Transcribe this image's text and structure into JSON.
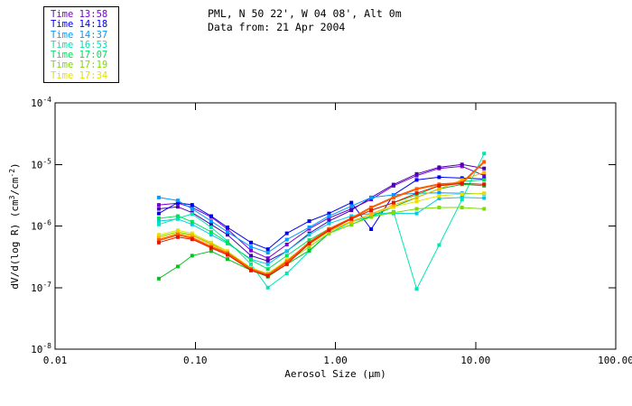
{
  "header": {
    "title_line1": "PML, N 50 22', W 04 08', Alt 0m",
    "title_line2": "Data from: 21 Apr 2004"
  },
  "legend": {
    "items": [
      {
        "label": "Time 13:58",
        "color": "#7A00D2"
      },
      {
        "label": "Time 14:18",
        "color": "#0000F0"
      },
      {
        "label": "Time 14:37",
        "color": "#009CFF"
      },
      {
        "label": "Time 16:53",
        "color": "#00E6B4"
      },
      {
        "label": "Time 17:07",
        "color": "#00E25A"
      },
      {
        "label": "Time 17:19",
        "color": "#7DDC00"
      },
      {
        "label": "Time 17:34",
        "color": "#E3E300"
      }
    ]
  },
  "axes": {
    "x": {
      "label": "Aerosol Size (μm)",
      "ticks": [
        {
          "value": 0.01,
          "label": "0.01"
        },
        {
          "value": 0.1,
          "label": "0.10"
        },
        {
          "value": 1.0,
          "label": "1.00"
        },
        {
          "value": 10.0,
          "label": "10.00"
        },
        {
          "value": 100.0,
          "label": "100.00"
        }
      ]
    },
    "y": {
      "label_parts": [
        {
          "text": "dV/d(log R) (cm"
        },
        {
          "text": "3",
          "sup": true
        },
        {
          "text": "/cm"
        },
        {
          "text": "-2",
          "sup": true
        },
        {
          "text": ")"
        }
      ],
      "ticks": [
        {
          "value": 0.0001,
          "base": "10",
          "exp": "-4"
        },
        {
          "value": 1e-05,
          "base": "10",
          "exp": "-5"
        },
        {
          "value": 1e-06,
          "base": "10",
          "exp": "-6"
        },
        {
          "value": 1e-07,
          "base": "10",
          "exp": "-7"
        },
        {
          "value": 1e-08,
          "base": "10",
          "exp": "-8"
        }
      ]
    }
  },
  "chart_data": {
    "type": "line",
    "title": "PML, N 50 22', W 04 08', Alt 0m — Data from: 21 Apr 2004",
    "xlabel": "Aerosol Size (um)",
    "ylabel": "dV/d(log R) (cm3/cm-2)",
    "xscale": "log",
    "yscale": "log",
    "xlim": [
      0.01,
      100.0
    ],
    "ylim": [
      1e-08,
      0.0001
    ],
    "grid": false,
    "legend_position": "top-left",
    "marker": "square",
    "x": [
      0.055,
      0.075,
      0.095,
      0.13,
      0.17,
      0.25,
      0.33,
      0.45,
      0.65,
      0.9,
      1.3,
      1.8,
      2.6,
      3.8,
      5.5,
      8.0,
      11.5
    ],
    "series": [
      {
        "name": "Time 13:58",
        "color": "#7A00D2",
        "width": 1,
        "values": [
          2.2e-06,
          2.35e-06,
          2e-06,
          1.4e-06,
          8.9e-07,
          4e-07,
          3e-07,
          5e-07,
          9e-07,
          1.35e-06,
          1.9e-06,
          2.7e-06,
          4.5e-06,
          6.6e-06,
          8.6e-06,
          9.3e-06,
          6.6e-06
        ]
      },
      {
        "name": "unlabeled-indigo",
        "color": "#4B00B0",
        "width": 1,
        "values": [
          1.9e-06,
          2.05e-06,
          1.65e-06,
          1.06e-06,
          7.2e-07,
          3.3e-07,
          2.7e-07,
          3.9e-07,
          7.6e-07,
          1.2e-06,
          1.8e-06,
          2.9e-06,
          4.7e-06,
          7e-06,
          9e-06,
          1e-05,
          8.6e-06
        ]
      },
      {
        "name": "Time 14:18",
        "color": "#0000F0",
        "width": 1,
        "values": [
          1.6e-06,
          2.4e-06,
          2.2e-06,
          1.45e-06,
          9.5e-07,
          5.4e-07,
          4.2e-07,
          7.6e-07,
          1.2e-06,
          1.6e-06,
          2.4e-06,
          8.9e-07,
          3.2e-06,
          5.6e-06,
          6.2e-06,
          6e-06,
          5.8e-06
        ]
      },
      {
        "name": "Time 14:37",
        "color": "#009CFF",
        "width": 1,
        "values": [
          2.9e-06,
          2.6e-06,
          1.9e-06,
          1.2e-06,
          8e-07,
          4.6e-07,
          3.7e-07,
          6e-07,
          9.5e-07,
          1.45e-06,
          2.1e-06,
          2.9e-06,
          3.2e-06,
          3.4e-06,
          3.45e-06,
          3.4e-06,
          3.35e-06
        ]
      },
      {
        "name": "unlabeled-cyan",
        "color": "#00CBE6",
        "width": 1,
        "values": [
          1.2e-06,
          1.3e-06,
          1.06e-06,
          7.2e-07,
          5.2e-07,
          2.9e-07,
          2.4e-07,
          3.9e-07,
          7.2e-07,
          1.1e-06,
          1.45e-06,
          1.6e-06,
          1.6e-06,
          1.6e-06,
          2.8e-06,
          2.9e-06,
          2.85e-06
        ]
      },
      {
        "name": "Time 16:53",
        "color": "#00E6B4",
        "width": 1,
        "values": [
          1.06e-06,
          1.33e-06,
          1.57e-06,
          9.5e-07,
          5.7e-07,
          2.4e-07,
          1e-07,
          1.7e-07,
          3.9e-07,
          7.6e-07,
          1.17e-06,
          1.45e-06,
          1.7e-06,
          9.5e-08,
          4.9e-07,
          2.7e-06,
          1.5e-05
        ]
      },
      {
        "name": "Time 17:07",
        "color": "#00E25A",
        "width": 1,
        "values": [
          1.33e-06,
          1.45e-06,
          1.17e-06,
          8e-07,
          5.4e-07,
          2.8e-07,
          2e-07,
          3.3e-07,
          5.9e-07,
          9e-07,
          1.3e-06,
          1.8e-06,
          2.4e-06,
          3.2e-06,
          4.5e-06,
          5.3e-06,
          5.6e-06
        ]
      },
      {
        "name": "unlabeled-green",
        "color": "#00C31E",
        "width": 1,
        "values": [
          1.4e-07,
          2.2e-07,
          3.3e-07,
          3.9e-07,
          2.9e-07,
          1.9e-07,
          1.5e-07,
          2.4e-07,
          4e-07,
          7.6e-07,
          1.06e-06,
          1.45e-06,
          2.05e-06,
          2.9e-06,
          4e-06,
          4.75e-06,
          4.5e-06
        ]
      },
      {
        "name": "Time 17:19",
        "color": "#7DDC00",
        "width": 1,
        "values": [
          6.8e-07,
          8e-07,
          7.2e-07,
          5.2e-07,
          3.9e-07,
          2e-07,
          1.6e-07,
          2.6e-07,
          4.6e-07,
          7.6e-07,
          1.06e-06,
          1.4e-06,
          1.65e-06,
          1.9e-06,
          2e-06,
          2e-06,
          1.9e-06
        ]
      },
      {
        "name": "Time 17:34",
        "color": "#E3E300",
        "width": 1,
        "values": [
          7.2e-07,
          8.5e-07,
          7.6e-07,
          5.4e-07,
          3.9e-07,
          2.1e-07,
          1.7e-07,
          2.8e-07,
          5.2e-07,
          8.5e-07,
          1.2e-06,
          1.57e-06,
          2.05e-06,
          2.5e-06,
          3.1e-06,
          3.3e-06,
          3.4e-06
        ]
      },
      {
        "name": "unlabeled-gold",
        "color": "#FFB400",
        "width": 1,
        "values": [
          6.4e-07,
          7.6e-07,
          7e-07,
          5e-07,
          3.7e-07,
          2e-07,
          1.64e-07,
          2.7e-07,
          5e-07,
          8.2e-07,
          1.17e-06,
          1.57e-06,
          2.2e-06,
          2.9e-06,
          4e-06,
          5.6e-06,
          7.4e-06
        ]
      },
      {
        "name": "unlabeled-orange-red",
        "color": "#FF5A00",
        "width": 2,
        "values": [
          5.9e-07,
          7.2e-07,
          6.4e-07,
          4.6e-07,
          3.6e-07,
          2e-07,
          1.6e-07,
          2.6e-07,
          5.4e-07,
          8.9e-07,
          1.33e-06,
          2e-06,
          2.9e-06,
          4e-06,
          4.75e-06,
          5e-06,
          1.1e-05
        ]
      },
      {
        "name": "unlabeled-red",
        "color": "#E61400",
        "width": 1,
        "values": [
          5.4e-07,
          6.6e-07,
          6.1e-07,
          4.4e-07,
          3.4e-07,
          1.9e-07,
          1.55e-07,
          2.4e-07,
          5.2e-07,
          8.5e-07,
          1.3e-06,
          1.8e-06,
          2.4e-06,
          3.4e-06,
          4.5e-06,
          4.9e-06,
          4.75e-06
        ]
      }
    ]
  }
}
